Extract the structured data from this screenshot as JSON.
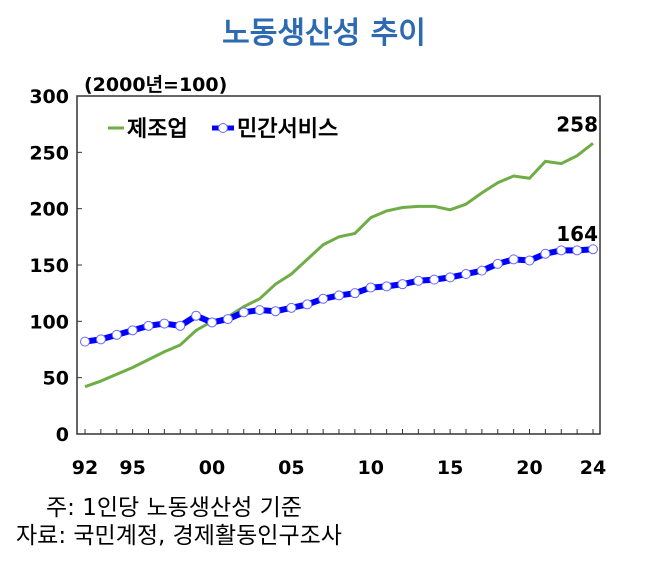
{
  "title": "노동생산성 추이",
  "unit_label": "(2000년=100)",
  "notes": {
    "note": "주: 1인당 노동생산성 기준",
    "source": "자료: 국민계정, 경제활동인구조사"
  },
  "colors": {
    "manufacturing": "#70ad47",
    "services": "#0000ff"
  },
  "chart_data": {
    "type": "line",
    "title": "노동생산성 추이",
    "ylabel": "(2000년=100)",
    "ylim": [
      0,
      300
    ],
    "yticks": [
      0,
      50,
      100,
      150,
      200,
      250,
      300
    ],
    "x": [
      1992,
      1993,
      1994,
      1995,
      1996,
      1997,
      1998,
      1999,
      2000,
      2001,
      2002,
      2003,
      2004,
      2005,
      2006,
      2007,
      2008,
      2009,
      2010,
      2011,
      2012,
      2013,
      2014,
      2015,
      2016,
      2017,
      2018,
      2019,
      2020,
      2021,
      2022,
      2023,
      2024
    ],
    "xtick_labels": [
      {
        "x": 1992,
        "label": "92"
      },
      {
        "x": 1995,
        "label": "95"
      },
      {
        "x": 2000,
        "label": "00"
      },
      {
        "x": 2005,
        "label": "05"
      },
      {
        "x": 2010,
        "label": "10"
      },
      {
        "x": 2015,
        "label": "15"
      },
      {
        "x": 2020,
        "label": "20"
      },
      {
        "x": 2024,
        "label": "24"
      }
    ],
    "legend_position": "top-left",
    "series": [
      {
        "name": "제조업",
        "values": [
          42,
          47,
          53,
          59,
          66,
          73,
          79,
          92,
          100,
          104,
          113,
          120,
          133,
          142,
          155,
          168,
          175,
          178,
          192,
          198,
          201,
          202,
          202,
          199,
          204,
          214,
          223,
          229,
          227,
          242,
          240,
          247,
          258
        ],
        "end_label": "258"
      },
      {
        "name": "민간서비스",
        "values": [
          82,
          84,
          88,
          92,
          96,
          98,
          96,
          105,
          99,
          102,
          108,
          110,
          109,
          112,
          115,
          120,
          123,
          125,
          130,
          131,
          133,
          136,
          137,
          139,
          142,
          145,
          151,
          155,
          154,
          160,
          163,
          163,
          164
        ],
        "end_label": "164"
      }
    ]
  }
}
